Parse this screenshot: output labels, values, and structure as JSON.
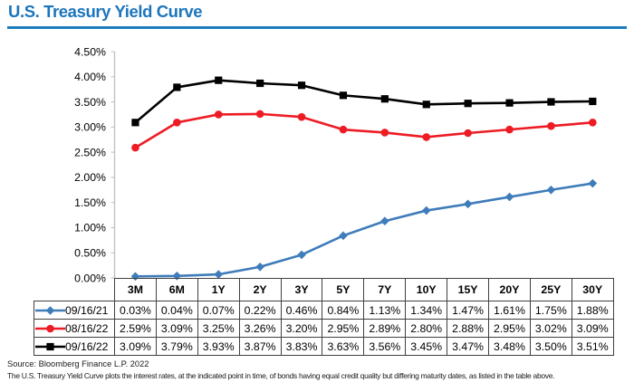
{
  "title": "U.S. Treasury Yield Curve",
  "colors": {
    "title": "#1B75BC",
    "underline": "#1E7CBE",
    "axis_line": "#BFBFBF",
    "table_border": "#404040",
    "series_blue": "#3F7CBA",
    "series_red": "#ED1C24",
    "series_black": "#000000"
  },
  "chart_data": {
    "type": "line",
    "title": "U.S. Treasury Yield Curve",
    "categories": [
      "3M",
      "6M",
      "1Y",
      "2Y",
      "3Y",
      "5Y",
      "7Y",
      "10Y",
      "15Y",
      "20Y",
      "25Y",
      "30Y"
    ],
    "series": [
      {
        "name": "09/16/21",
        "marker": "diamond",
        "color_key": "series_blue",
        "values": [
          0.03,
          0.04,
          0.07,
          0.22,
          0.46,
          0.84,
          1.13,
          1.34,
          1.47,
          1.61,
          1.75,
          1.88
        ]
      },
      {
        "name": "08/16/22",
        "marker": "circle",
        "color_key": "series_red",
        "values": [
          2.59,
          3.09,
          3.25,
          3.26,
          3.2,
          2.95,
          2.89,
          2.8,
          2.88,
          2.95,
          3.02,
          3.09
        ]
      },
      {
        "name": "09/16/22",
        "marker": "square",
        "color_key": "series_black",
        "values": [
          3.09,
          3.79,
          3.93,
          3.87,
          3.83,
          3.63,
          3.56,
          3.45,
          3.47,
          3.48,
          3.5,
          3.51
        ]
      }
    ],
    "ylim": [
      0,
      4.5
    ],
    "yticks": [
      {
        "v": 0.0,
        "label": "0.00%"
      },
      {
        "v": 0.5,
        "label": "0.50%"
      },
      {
        "v": 1.0,
        "label": "1.00%"
      },
      {
        "v": 1.5,
        "label": "1.50%"
      },
      {
        "v": 2.0,
        "label": "2.00%"
      },
      {
        "v": 2.5,
        "label": "2.50%"
      },
      {
        "v": 3.0,
        "label": "3.00%"
      },
      {
        "v": 3.5,
        "label": "3.50%"
      },
      {
        "v": 4.0,
        "label": "4.00%"
      },
      {
        "v": 4.5,
        "label": "4.50%"
      }
    ],
    "grid": false,
    "legend_position": "table-left"
  },
  "table": {
    "header": [
      "3M",
      "6M",
      "1Y",
      "2Y",
      "3Y",
      "5Y",
      "7Y",
      "10Y",
      "15Y",
      "20Y",
      "25Y",
      "30Y"
    ],
    "rows": [
      {
        "legend": "09/16/21",
        "cells": [
          "0.03%",
          "0.04%",
          "0.07%",
          "0.22%",
          "0.46%",
          "0.84%",
          "1.13%",
          "1.34%",
          "1.47%",
          "1.61%",
          "1.75%",
          "1.88%"
        ]
      },
      {
        "legend": "08/16/22",
        "cells": [
          "2.59%",
          "3.09%",
          "3.25%",
          "3.26%",
          "3.20%",
          "2.95%",
          "2.89%",
          "2.80%",
          "2.88%",
          "2.95%",
          "3.02%",
          "3.09%"
        ]
      },
      {
        "legend": "09/16/22",
        "cells": [
          "3.09%",
          "3.79%",
          "3.93%",
          "3.87%",
          "3.83%",
          "3.63%",
          "3.56%",
          "3.45%",
          "3.47%",
          "3.48%",
          "3.50%",
          "3.51%"
        ]
      }
    ]
  },
  "footer": {
    "source": "Source: Bloomberg Finance L.P. 2022",
    "note": "The U.S. Treasury Yield Curve plots the interest rates, at the indicated point in time, of bonds having equal credit quality but differing maturity dates, as listed in the table above."
  }
}
